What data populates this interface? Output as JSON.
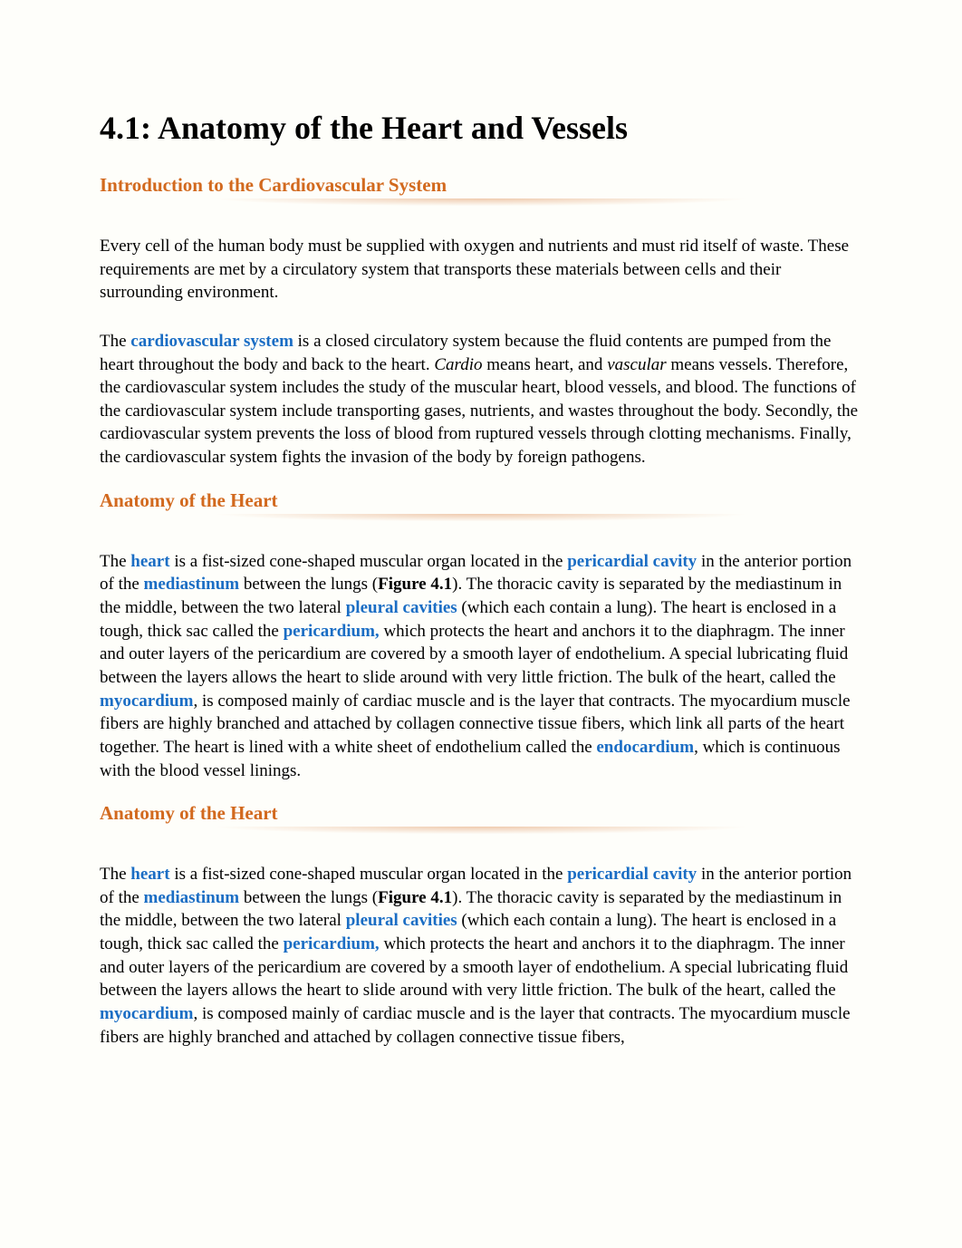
{
  "title": "4.1: Anatomy of the Heart and Vessels",
  "colors": {
    "background": "#fefefa",
    "heading_orange": "#d2691e",
    "link_blue": "#1a6dc4",
    "text": "#000000"
  },
  "typography": {
    "body_family": "Georgia, Times New Roman, serif",
    "h1_size": 36,
    "h2_size": 21,
    "body_size": 19,
    "line_height": 1.35
  },
  "sections": [
    {
      "heading": "Introduction to the Cardiovascular System",
      "paragraphs": [
        {
          "runs": [
            {
              "t": "Every cell of the human body must be supplied with oxygen and nutrients and must rid itself of waste. These requirements are met by a circulatory system that transports these materials between cells and their surrounding environment."
            }
          ]
        },
        {
          "runs": [
            {
              "t": "The "
            },
            {
              "t": "cardiovascular system",
              "term": true
            },
            {
              "t": " is a closed circulatory system because the fluid contents are pumped from the heart throughout the body and back to the heart. "
            },
            {
              "t": "Cardio",
              "italic": true
            },
            {
              "t": " means heart, and "
            },
            {
              "t": "vascular",
              "italic": true
            },
            {
              "t": " means vessels. Therefore, the cardiovascular system includes the study of the muscular heart, blood vessels, and blood. The functions of the cardiovascular system include transporting gases, nutrients, and wastes throughout the body. Secondly, the cardiovascular system prevents the loss of blood from ruptured vessels through clotting mechanisms. Finally, the cardiovascular system fights the invasion of the body by foreign pathogens."
            }
          ]
        }
      ]
    },
    {
      "heading": "Anatomy of the Heart",
      "paragraphs": [
        {
          "runs": [
            {
              "t": "The "
            },
            {
              "t": "heart",
              "term": true
            },
            {
              "t": " is a fist-sized cone-shaped muscular organ located in the "
            },
            {
              "t": "pericardial cavity",
              "term": true
            },
            {
              "t": " in the anterior portion of the "
            },
            {
              "t": "mediastinum",
              "term": true
            },
            {
              "t": " between the lungs ("
            },
            {
              "t": "Figure 4.1",
              "bold": true
            },
            {
              "t": "). The thoracic cavity is separated by the mediastinum in the middle, between the two lateral "
            },
            {
              "t": "pleural cavities",
              "term": true
            },
            {
              "t": " (which each contain a lung). The heart is enclosed in a tough, thick sac called the "
            },
            {
              "t": "pericardium,",
              "term": true
            },
            {
              "t": " which protects the heart and anchors it to the diaphragm. The inner and outer layers of the pericardium are covered by a smooth layer of endothelium. A special lubricating fluid between the layers allows the heart to slide around with very little friction. The bulk of the heart, called the "
            },
            {
              "t": "myocardium",
              "term": true
            },
            {
              "t": ", is composed mainly of cardiac muscle and is the layer that contracts. The myocardium muscle fibers are highly branched and attached by collagen connective tissue fibers, which link all parts of the heart together. The heart is lined with a white sheet of endothelium called the "
            },
            {
              "t": "endocardium",
              "term": true
            },
            {
              "t": ", which is continuous with the blood vessel linings."
            }
          ]
        }
      ]
    },
    {
      "heading": "Anatomy of the Heart",
      "paragraphs": [
        {
          "runs": [
            {
              "t": "The "
            },
            {
              "t": "heart",
              "term": true
            },
            {
              "t": " is a fist-sized cone-shaped muscular organ located in the "
            },
            {
              "t": "pericardial cavity",
              "term": true
            },
            {
              "t": " in the anterior portion of the "
            },
            {
              "t": "mediastinum",
              "term": true
            },
            {
              "t": " between the lungs ("
            },
            {
              "t": "Figure 4.1",
              "bold": true
            },
            {
              "t": "). The thoracic cavity is separated by the mediastinum in the middle, between the two lateral "
            },
            {
              "t": "pleural cavities",
              "term": true
            },
            {
              "t": " (which each contain a lung). The heart is enclosed in a tough, thick sac called the "
            },
            {
              "t": "pericardium,",
              "term": true
            },
            {
              "t": " which protects the heart and anchors it to the diaphragm. The inner and outer layers of the pericardium are covered by a smooth layer of endothelium. A special lubricating fluid between the layers allows the heart to slide around with very little friction. The bulk of the heart, called the "
            },
            {
              "t": "myocardium",
              "term": true
            },
            {
              "t": ", is composed mainly of cardiac muscle and is the layer that contracts. The myocardium muscle fibers are highly branched and attached by collagen connective tissue fibers,"
            }
          ]
        }
      ]
    }
  ]
}
